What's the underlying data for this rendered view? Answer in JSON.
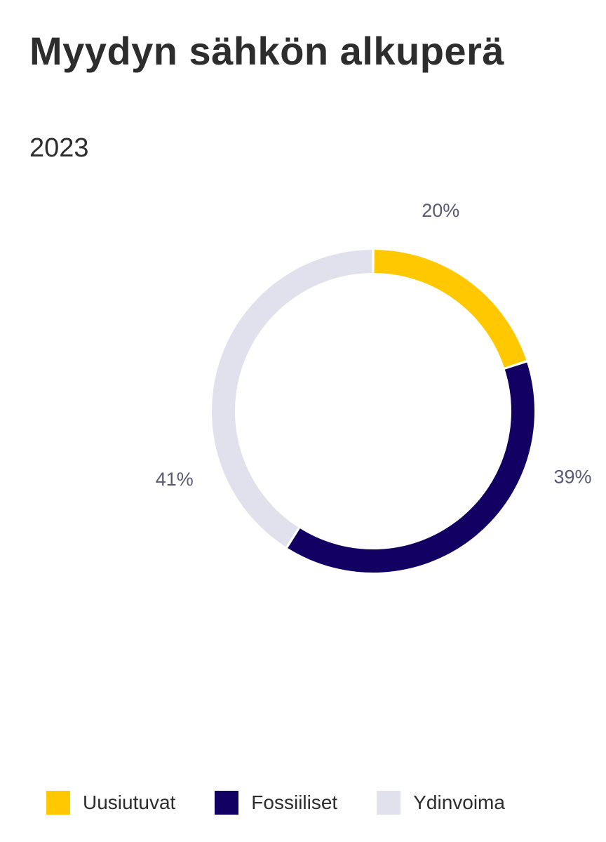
{
  "chart_data": {
    "type": "pie",
    "title": "Myydyn sähkön alkuperä",
    "subtitle": "2023",
    "donut": true,
    "start_angle_deg": 0,
    "direction": "clockwise",
    "categories": [
      "Uusiutuvat",
      "Fossiiliset",
      "Ydinvoima"
    ],
    "values": [
      20,
      39,
      41
    ],
    "data_labels": [
      "20%",
      "39%",
      "41%"
    ],
    "colors": [
      "#FFC800",
      "#120062",
      "#E1E1EE"
    ],
    "label_color": "#5a5a78",
    "legend_position": "bottom-left"
  }
}
